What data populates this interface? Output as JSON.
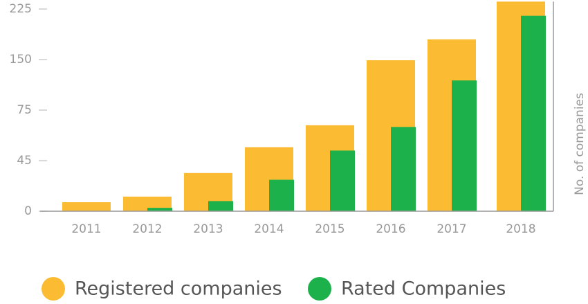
{
  "chart_data": {
    "type": "bar",
    "categories": [
      "2011",
      "2012",
      "2013",
      "2014",
      "2015",
      "2016",
      "2017",
      "2018"
    ],
    "series": [
      {
        "name": "Registered companies",
        "color": "#fbbc34",
        "values": [
          8,
          13,
          34,
          53,
          66,
          149,
          180,
          236
        ]
      },
      {
        "name": "Rated Companies",
        "color": "#1db14b",
        "values": [
          0,
          3,
          9,
          28,
          51,
          65,
          119,
          215
        ]
      }
    ],
    "y_axis_label": "No. of companies",
    "ylim": [
      0,
      236
    ],
    "yticks": [
      0,
      45,
      75,
      150,
      225
    ],
    "legend": "bottom"
  }
}
